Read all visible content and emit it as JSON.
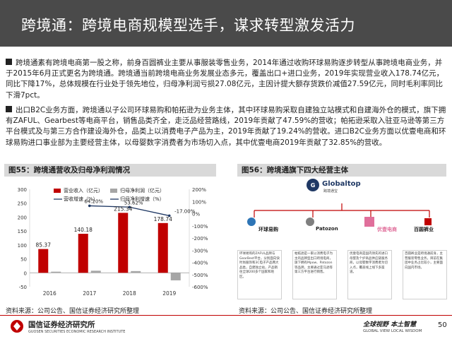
{
  "header": {
    "title": "跨境通：跨境电商规模型选手，谋求转型激发活力"
  },
  "body": {
    "p1": "跨境通素有跨境电商第一股之称，前身百圆裤业主要从事服装零售业务，2014年通过收购环球易购逐步转型从事跨境电商业务，并于2015年6月正式更名为跨境通。跨境通当前跨境电商业务发展业态多元，覆盖出口+进口业务，2019年实现营业收入178.74亿元，同比下降17%，总体规模在行业处于领先地位，归母净利润亏损27.08亿元，主因计提大额存货跌价减值27.59亿元，同时毛利率同比下滑7pct。",
    "p2": "出口B2C业务方面，跨境通以子公司环球易购和帕拓逊为业务主体，其中环球易购采取自建独立站模式和自建海外仓的模式，旗下拥有ZAFUL、Gearbest等电商平台，销售品类齐全，走泛品经营路线，2019年贡献了47.59%的营收；帕拓逊采取入驻亚马逊等第三方平台模式及与第三方合作建设海外仓，品类上以消费电子产品为主，2019年贡献了19.24%的营收。进口B2C业务方面以优壹电商和环球易购进口事业部为主要经营主体，以母婴数字消费者为市场切入点，其中优壹电商2019年贡献了32.85%的营收。"
  },
  "figure55": {
    "label": "图55：跨境通营收及归母净利润情况",
    "source": "资料来源：公司公告、国信证券经济研究所整理"
  },
  "figure56": {
    "label": "图56：跨境通旗下四大经营主体",
    "source": "资料来源：公司公告、国信证券经济研究所整理",
    "top_logo": "Globaltop",
    "top_logo_sub": "跨境通宝",
    "brands": [
      {
        "name": "环球易购",
        "desc": "环球易购的ZAFUL品牌与GearBest平台，分别面向快时尚服饰和3C电子产品两大品类，自建独立站，产品销往全球200多个国家和地区。"
      },
      {
        "name": "Patozon",
        "desc": "帕拓逊是一家以消费电子为主的品牌型出口跨境电商，旗下拥有Mpow、Patozon等品牌，主要通过亚马逊等第三方平台进行销售。"
      },
      {
        "name": "优壹电商",
        "desc": "优壹电商是国内领先的进口母婴及个护商品供应链服务商，以母婴数字消费者为切入点，覆盖线上线下多渠道。"
      },
      {
        "name": "百圆裤业",
        "desc": "百圆裤业是跨境通前身，主营服装零售业务，目前在集团中业务占比较小，主要面向国内市场。"
      }
    ]
  },
  "chart_data": {
    "type": "bar",
    "categories": [
      "2016",
      "2017",
      "2018",
      "2019"
    ],
    "series": [
      {
        "name": "营业收入（亿元）",
        "type": "bar",
        "axis": "left",
        "values": [
          85.37,
          140.18,
          215.34,
          178.74
        ],
        "color": "#c00000"
      },
      {
        "name": "归母净利润（亿元）",
        "type": "bar",
        "axis": "left",
        "values": [
          4.1,
          7.5,
          6.2,
          -27.08
        ],
        "color": "#a6a6a6"
      },
      {
        "name": "归母净利增速（%）",
        "type": "line",
        "axis": "right",
        "values": [
          null,
          null,
          null,
          null
        ],
        "color": "#1f3864"
      },
      {
        "name": "营收增速（%）",
        "type": "line",
        "axis": "right",
        "values": [
          null,
          64.2,
          53.62,
          -17.0
        ],
        "color": "#1f3864"
      }
    ],
    "bar_labels": [
      "85.37",
      "140.18",
      "215.34",
      "178.74"
    ],
    "line_labels": [
      "",
      "64.20%",
      "53.62%",
      "-17.00%"
    ],
    "ylim_left": [
      -50,
      300
    ],
    "yticks_left": [
      -50,
      0,
      50,
      100,
      150,
      200,
      250,
      300
    ],
    "ylim_right": [
      -600,
      200
    ],
    "yticks_right": [
      "200%",
      "100%",
      "0%",
      "-100%",
      "-200%",
      "-300%",
      "-400%",
      "-500%",
      "-600%"
    ],
    "legend_position": "top"
  },
  "footer": {
    "org": "国信证券经济研究所",
    "org_en": "GUOSEN SECURITIES ECONOMIC RESEARCH INSTITUTE",
    "slogan": "全球视野 本土智慧",
    "slogan_en": "GLOBAL VIEW    LOCAL WISDOM",
    "page": "50"
  },
  "colors": {
    "header_bg": "#4a4a4a",
    "accent_red": "#c00000",
    "bar_gray": "#a6a6a6",
    "line_navy": "#1f3864"
  }
}
